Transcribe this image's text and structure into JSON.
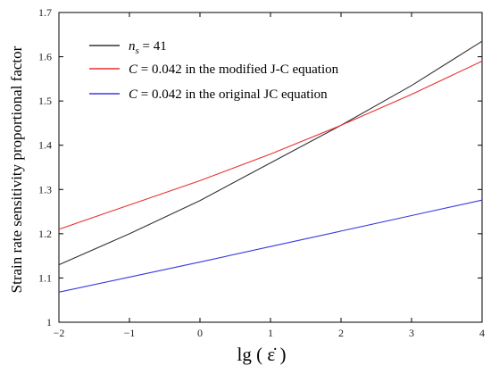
{
  "chart_data": {
    "type": "line",
    "xlabel": "lg ( ε̇ )",
    "ylabel": "Strain rate sensitivity proportional factor",
    "xlim": [
      -2,
      4
    ],
    "ylim": [
      1,
      1.7
    ],
    "xticks": [
      -2,
      -1,
      0,
      1,
      2,
      3,
      4
    ],
    "yticks": [
      1,
      1.1,
      1.2,
      1.3,
      1.4,
      1.5,
      1.6,
      1.7
    ],
    "xtick_labels": [
      "−2",
      "−1",
      "0",
      "1",
      "2",
      "3",
      "4"
    ],
    "ytick_labels": [
      "1",
      "1.1",
      "1.2",
      "1.3",
      "1.4",
      "1.5",
      "1.6",
      "1.7"
    ],
    "grid": false,
    "legend_position": "top-left",
    "series": [
      {
        "legend": {
          "var": "n",
          "sub": "s",
          "rest": " = 41"
        },
        "color": "#333333",
        "x": [
          -2,
          -1,
          0,
          1,
          2,
          3,
          4
        ],
        "y": [
          1.13,
          1.2,
          1.275,
          1.36,
          1.445,
          1.535,
          1.635
        ]
      },
      {
        "legend": {
          "var": "C",
          "sub": "",
          "rest": " = 0.042 in the modified J-C equation"
        },
        "color": "#e83030",
        "x": [
          -2,
          -1,
          0,
          1,
          2,
          3,
          4
        ],
        "y": [
          1.21,
          1.265,
          1.32,
          1.38,
          1.445,
          1.515,
          1.59
        ]
      },
      {
        "legend": {
          "var": "C",
          "sub": "",
          "rest": " = 0.042 in the original  JC  equation"
        },
        "color": "#3a3ae0",
        "x": [
          -2,
          -1,
          0,
          1,
          2,
          3,
          4
        ],
        "y": [
          1.068,
          1.102,
          1.136,
          1.171,
          1.206,
          1.241,
          1.276
        ]
      }
    ]
  }
}
